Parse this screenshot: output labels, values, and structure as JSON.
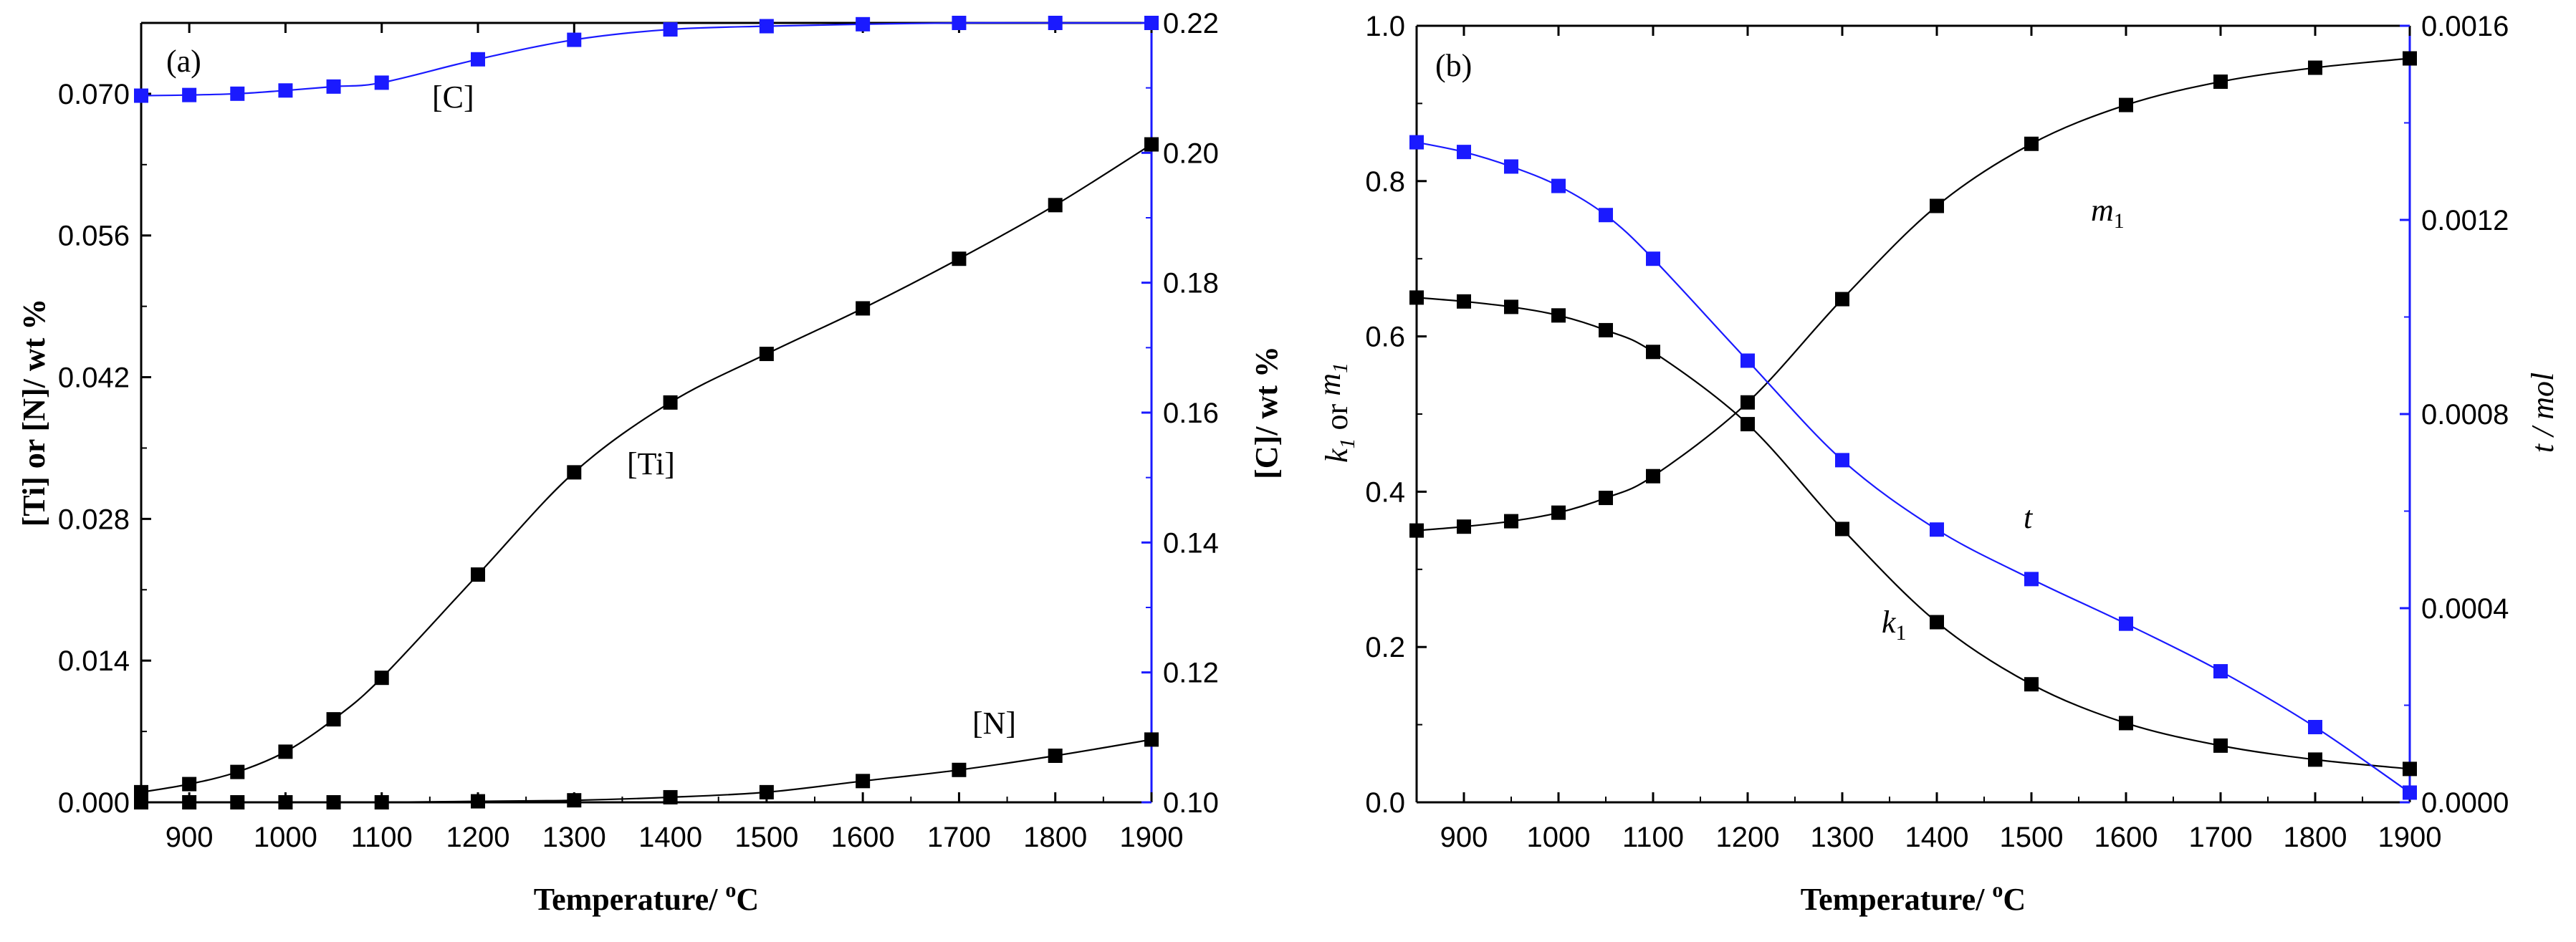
{
  "chart_data": [
    {
      "panel": "(a)",
      "type": "line",
      "x": [
        850,
        900,
        950,
        1000,
        1050,
        1100,
        1200,
        1300,
        1400,
        1500,
        1600,
        1700,
        1800,
        1900
      ],
      "xlim": [
        850,
        1900
      ],
      "xticks": [
        "900",
        "1000",
        "1100",
        "1200",
        "1300",
        "1400",
        "1500",
        "1600",
        "1700",
        "1800",
        "1900"
      ],
      "xlabel": "Temperature/ °C",
      "ylabel_left": "[Ti] or [N]/ wt %",
      "ylim_left": [
        0,
        0.077
      ],
      "yticks_left": [
        "0.000",
        "0.014",
        "0.028",
        "0.042",
        "0.056",
        "0.070"
      ],
      "ylabel_right": "[C]/ wt %",
      "ylim_right": [
        0.1,
        0.22
      ],
      "yticks_right": [
        "0.10",
        "0.12",
        "0.14",
        "0.16",
        "0.18",
        "0.20",
        "0.22"
      ],
      "series": [
        {
          "name": "[Ti]",
          "axis": "left",
          "color": "#000000",
          "values": [
            0.001,
            0.0018,
            0.003,
            0.005,
            0.0082,
            0.0123,
            0.0225,
            0.0326,
            0.0395,
            0.0443,
            0.0488,
            0.0537,
            0.059,
            0.065
          ]
        },
        {
          "name": "[N]",
          "axis": "left",
          "color": "#000000",
          "values": [
            0.0,
            0.0,
            0.0,
            0.0,
            0.0,
            0.0,
            0.0001,
            0.0002,
            0.0005,
            0.001,
            0.0021,
            0.0032,
            0.0046,
            0.0062
          ]
        },
        {
          "name": "[C]",
          "axis": "right",
          "color": "#1a1aff",
          "values": [
            0.2088,
            0.2089,
            0.2091,
            0.2096,
            0.2102,
            0.2108,
            0.2144,
            0.2174,
            0.219,
            0.2195,
            0.2198,
            0.22,
            0.22,
            0.22
          ]
        }
      ],
      "annotations": [
        "(a)",
        "[C]",
        "[Ti]",
        "[N]"
      ]
    },
    {
      "panel": "(b)",
      "type": "line",
      "x": [
        850,
        900,
        950,
        1000,
        1050,
        1100,
        1200,
        1300,
        1400,
        1500,
        1600,
        1700,
        1800,
        1900
      ],
      "xlim": [
        850,
        1900
      ],
      "xticks": [
        "900",
        "1000",
        "1100",
        "1200",
        "1300",
        "1400",
        "1500",
        "1600",
        "1700",
        "1800",
        "1900"
      ],
      "xlabel": "Temperature/ °C",
      "ylabel_left": "k1 or m1",
      "ylim_left": [
        0,
        1.0
      ],
      "yticks_left": [
        "0.0",
        "0.2",
        "0.4",
        "0.6",
        "0.8",
        "1.0"
      ],
      "ylabel_right": "t / mol",
      "ylim_right": [
        0,
        0.0016
      ],
      "yticks_right": [
        "0.0000",
        "0.0004",
        "0.0008",
        "0.0012",
        "0.0016"
      ],
      "series": [
        {
          "name": "m1",
          "axis": "left",
          "color": "#000000",
          "values": [
            0.35,
            0.355,
            0.362,
            0.373,
            0.392,
            0.42,
            0.515,
            0.648,
            0.768,
            0.848,
            0.898,
            0.928,
            0.946,
            0.958
          ]
        },
        {
          "name": "k1",
          "axis": "left",
          "color": "#000000",
          "values": [
            0.65,
            0.645,
            0.638,
            0.627,
            0.608,
            0.58,
            0.487,
            0.352,
            0.232,
            0.152,
            0.102,
            0.073,
            0.055,
            0.043
          ]
        },
        {
          "name": "t",
          "axis": "right",
          "color": "#1a1aff",
          "values": [
            0.00136,
            0.00134,
            0.00131,
            0.00127,
            0.00121,
            0.00112,
            0.00091,
            0.000705,
            0.000562,
            0.00046,
            0.000368,
            0.00027,
            0.000155,
            2e-05
          ]
        }
      ],
      "annotations": [
        "(b)",
        "m1",
        "t",
        "k1"
      ]
    }
  ]
}
